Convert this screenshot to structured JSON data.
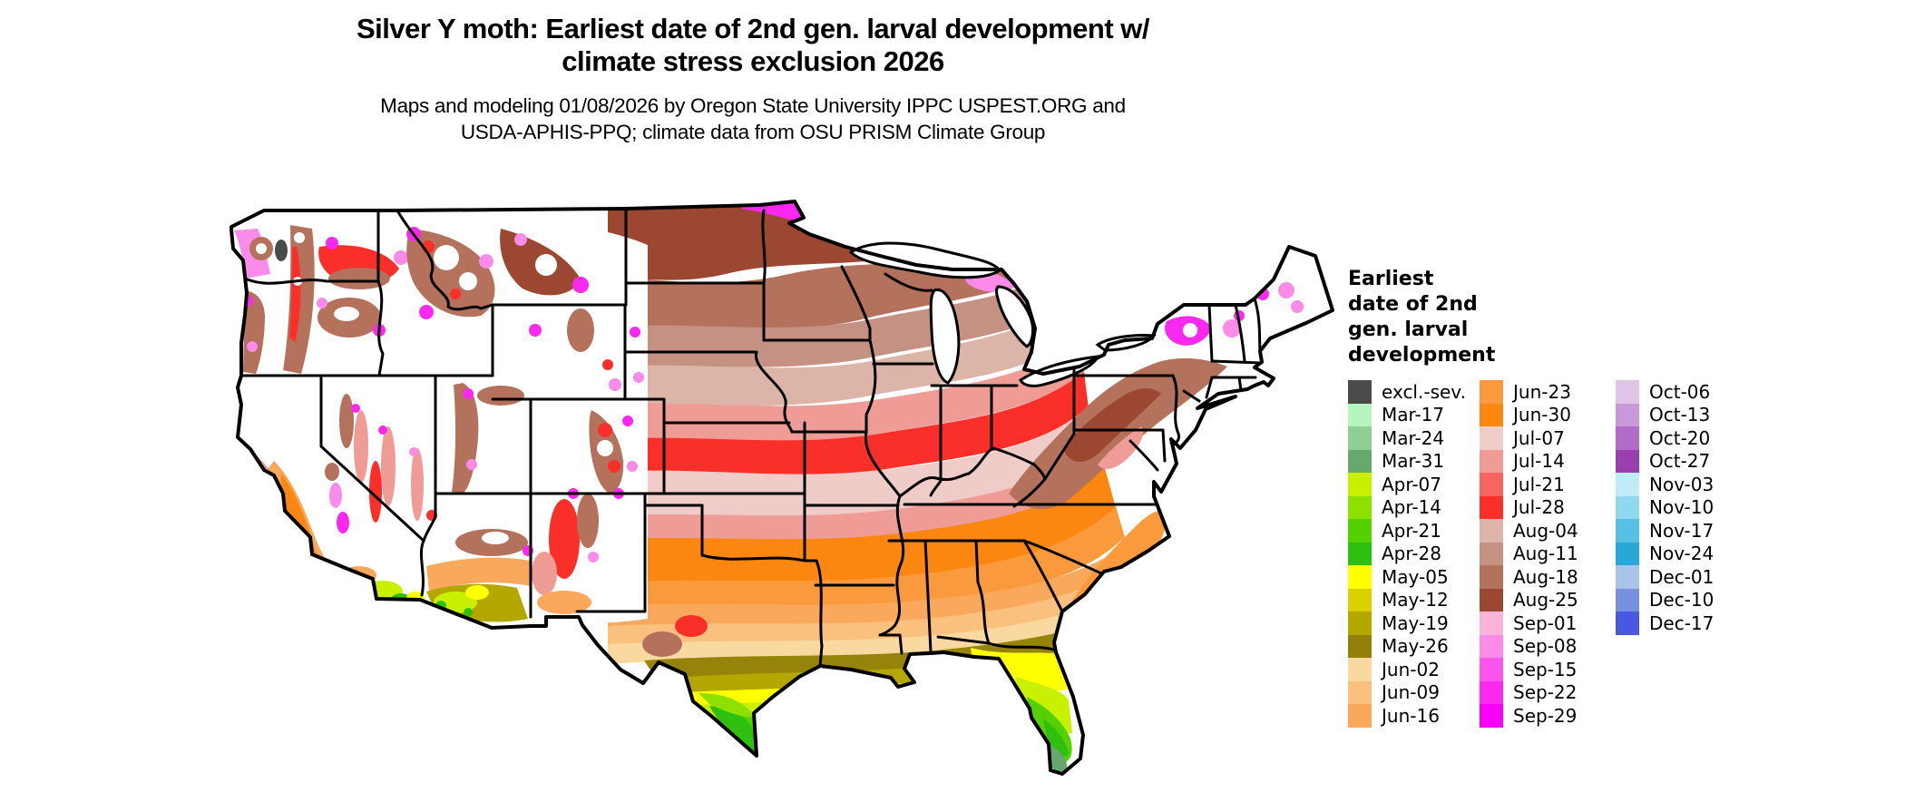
{
  "header": {
    "title": "Silver Y moth: Earliest date of 2nd gen. larval development w/\nclimate stress exclusion 2026",
    "subtitle": "Maps and modeling 01/08/2026 by Oregon State University IPPC USPEST.ORG and\nUSDA-APHIS-PPQ; climate data from OSU PRISM Climate Group"
  },
  "legend": {
    "title": "Earliest\ndate of 2nd\ngen. larval\ndevelopment",
    "columns": [
      {
        "entries": [
          {
            "label": "excl.-sev.",
            "color": "#4A4A4A"
          },
          {
            "label": "Mar-17",
            "color": "#B8F5BE"
          },
          {
            "label": "Mar-24",
            "color": "#8FCF96"
          },
          {
            "label": "Mar-31",
            "color": "#67A86F"
          },
          {
            "label": "Apr-07",
            "color": "#C8F000"
          },
          {
            "label": "Apr-14",
            "color": "#8EE000"
          },
          {
            "label": "Apr-21",
            "color": "#55D000"
          },
          {
            "label": "Apr-28",
            "color": "#2FBF0F"
          },
          {
            "label": "May-05",
            "color": "#FFFF00"
          },
          {
            "label": "May-12",
            "color": "#DCD000"
          },
          {
            "label": "May-19",
            "color": "#B4A800"
          },
          {
            "label": "May-26",
            "color": "#91800A"
          },
          {
            "label": "Jun-02",
            "color": "#FAD9A0"
          },
          {
            "label": "Jun-09",
            "color": "#FAC17E"
          },
          {
            "label": "Jun-16",
            "color": "#FAA85C"
          }
        ]
      },
      {
        "entries": [
          {
            "label": "Jun-23",
            "color": "#FB9A3C"
          },
          {
            "label": "Jun-30",
            "color": "#FB8711"
          },
          {
            "label": "Jul-07",
            "color": "#F0CDC8"
          },
          {
            "label": "Jul-14",
            "color": "#F09C96"
          },
          {
            "label": "Jul-21",
            "color": "#F8645F"
          },
          {
            "label": "Jul-28",
            "color": "#FB2F2A"
          },
          {
            "label": "Aug-04",
            "color": "#DCB4A8"
          },
          {
            "label": "Aug-11",
            "color": "#C49183"
          },
          {
            "label": "Aug-18",
            "color": "#B4715C"
          },
          {
            "label": "Aug-25",
            "color": "#9C4731"
          },
          {
            "label": "Sep-01",
            "color": "#FBB4D8"
          },
          {
            "label": "Sep-08",
            "color": "#FB8BE8"
          },
          {
            "label": "Sep-15",
            "color": "#FB55EE"
          },
          {
            "label": "Sep-22",
            "color": "#FB28F0"
          },
          {
            "label": "Sep-29",
            "color": "#FA00F8"
          }
        ]
      },
      {
        "entries": [
          {
            "label": "Oct-06",
            "color": "#E0C4E8"
          },
          {
            "label": "Oct-13",
            "color": "#C898D8"
          },
          {
            "label": "Oct-20",
            "color": "#B06CC8"
          },
          {
            "label": "Oct-27",
            "color": "#9840B0"
          },
          {
            "label": "Nov-03",
            "color": "#C0ECF8"
          },
          {
            "label": "Nov-10",
            "color": "#90D8F0"
          },
          {
            "label": "Nov-17",
            "color": "#58C0E4"
          },
          {
            "label": "Nov-24",
            "color": "#28A8D8"
          },
          {
            "label": "Dec-01",
            "color": "#A8C4E8"
          },
          {
            "label": "Dec-10",
            "color": "#7890E0"
          },
          {
            "label": "Dec-17",
            "color": "#4858E0"
          }
        ]
      }
    ]
  }
}
